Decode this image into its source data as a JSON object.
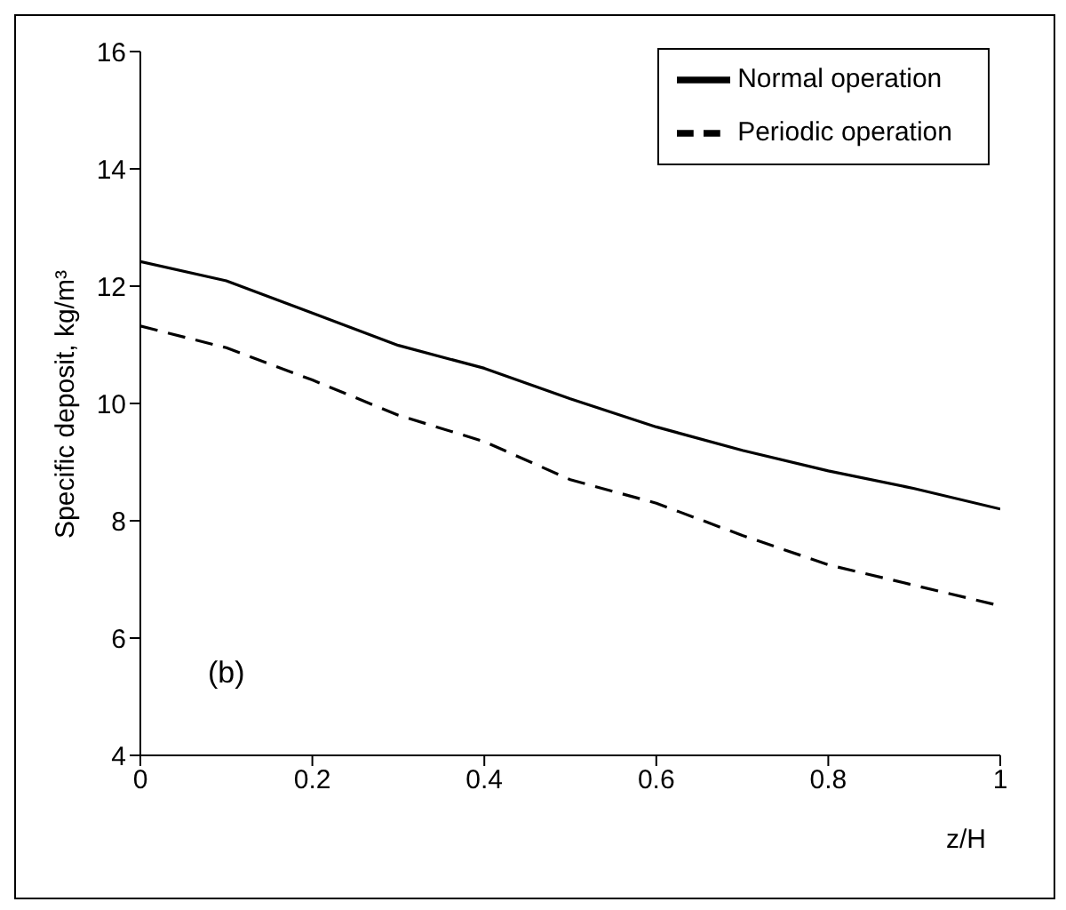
{
  "chart_data": {
    "type": "line",
    "xlabel": "z/H",
    "ylabel": "Specific deposit, kg/m³",
    "annotations": [
      "(b)"
    ],
    "x": [
      0,
      0.1,
      0.2,
      0.3,
      0.4,
      0.5,
      0.6,
      0.7,
      0.8,
      0.9,
      1
    ],
    "series": [
      {
        "name": "Normal operation",
        "color": "#000000",
        "line_style": "solid",
        "values": [
          12.42,
          12.09,
          11.54,
          10.99,
          10.6,
          10.08,
          9.6,
          9.2,
          8.85,
          8.55,
          8.2
        ]
      },
      {
        "name": "Periodic operation",
        "color": "#000000",
        "line_style": "dashed",
        "values": [
          11.32,
          10.95,
          10.4,
          9.8,
          9.35,
          8.7,
          8.3,
          7.75,
          7.25,
          6.9,
          6.55
        ]
      }
    ],
    "xlim": [
      0,
      1
    ],
    "xticks": [
      0,
      0.2,
      0.4,
      0.6,
      0.8,
      1
    ],
    "ylim": [
      4,
      16
    ],
    "yticks": [
      4,
      6,
      8,
      10,
      12,
      14,
      16
    ],
    "grid": false,
    "legend": "top right",
    "marker": "none"
  }
}
